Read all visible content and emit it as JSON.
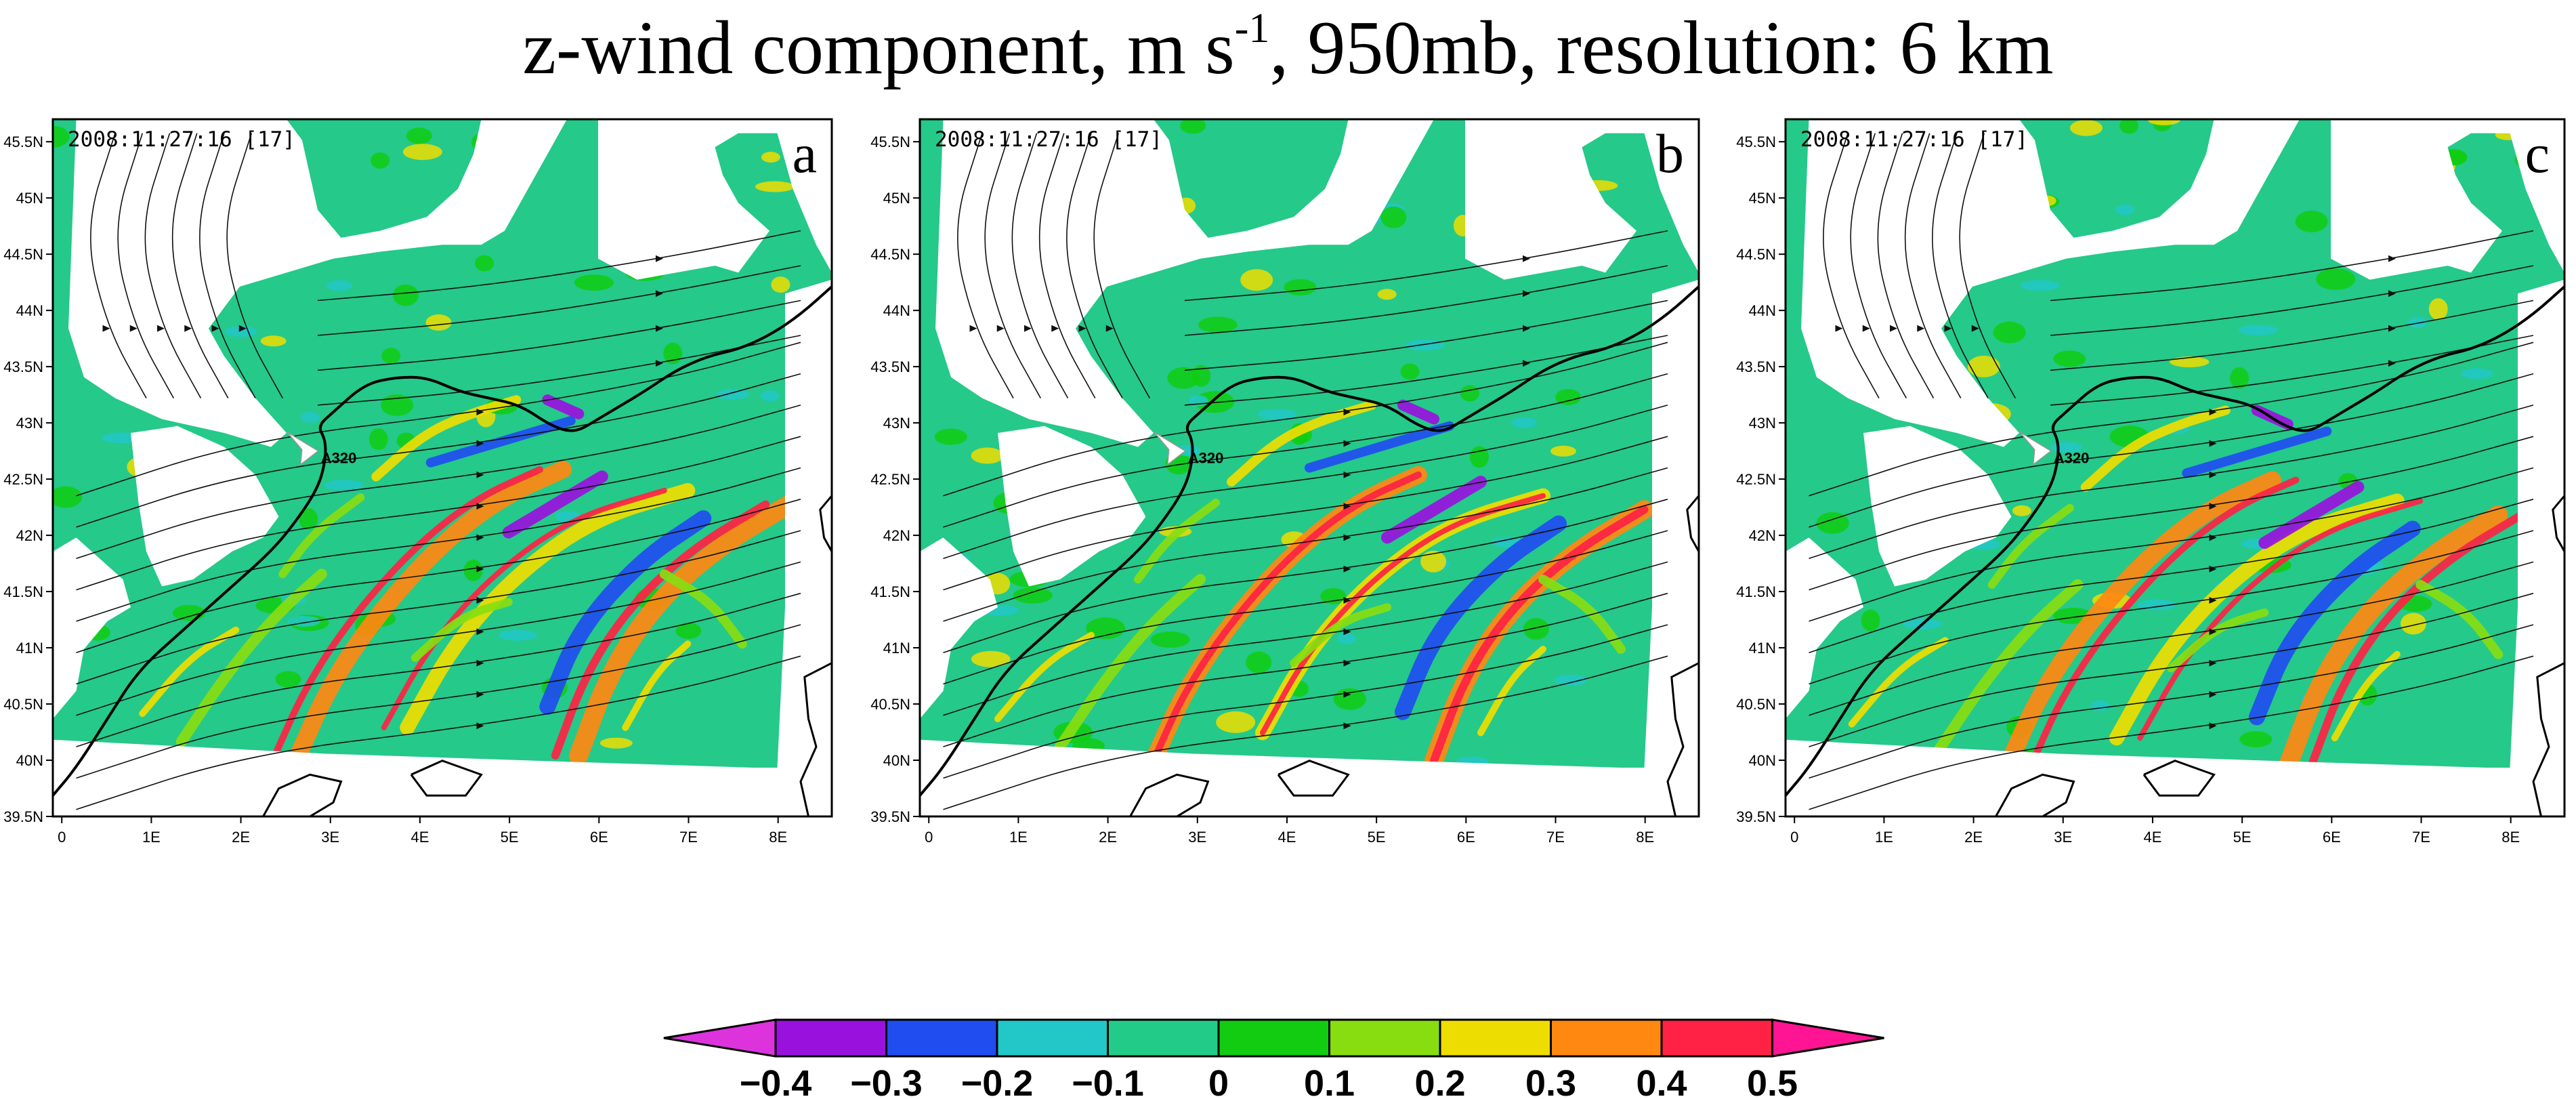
{
  "title": {
    "prefix": "z-wind component, m s",
    "superscript": "-1",
    "suffix": ", 950mb, resolution: 6 km"
  },
  "panels": [
    {
      "letter": "a",
      "timestamp": "2008:11:27:16 [17]",
      "marker_label": "A320"
    },
    {
      "letter": "b",
      "timestamp": "2008:11:27:16 [17]",
      "marker_label": "A320"
    },
    {
      "letter": "c",
      "timestamp": "2008:11:27:16 [17]",
      "marker_label": "A320"
    }
  ],
  "map_axes": {
    "lat_ticks": [
      "39.5N",
      "40N",
      "40.5N",
      "41N",
      "41.5N",
      "42N",
      "42.5N",
      "43N",
      "43.5N",
      "44N",
      "44.5N",
      "45N",
      "45.5N"
    ],
    "lon_ticks": [
      "0",
      "1E",
      "2E",
      "3E",
      "4E",
      "5E",
      "6E",
      "7E",
      "8E"
    ],
    "lat_range": [
      39.5,
      45.7
    ],
    "lon_range": [
      -0.1,
      8.6
    ]
  },
  "colorbar": {
    "labels": [
      "−0.4",
      "−0.3",
      "−0.2",
      "−0.1",
      "0",
      "0.1",
      "0.2",
      "0.3",
      "0.4",
      "0.5"
    ],
    "colors": {
      "under": "#dd33dd",
      "bins": [
        "#9911dd",
        "#1f4df0",
        "#22c7c7",
        "#22cc88",
        "#11cc11",
        "#88dd11",
        "#eedd00",
        "#ff8811",
        "#ff2244"
      ],
      "over": "#ff1493"
    },
    "field_background": "#25c98a"
  }
}
